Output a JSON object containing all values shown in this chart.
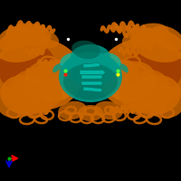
{
  "bg_color": "#000000",
  "figure_size": [
    2.0,
    2.0
  ],
  "dpi": 100,
  "arrow_x_color": "#ff0000",
  "arrow_y_color": "#0000cc",
  "orange_color": "#cc6600",
  "orange_dark": "#993300",
  "orange_light": "#dd7700",
  "teal_color": "#009988",
  "teal_dark": "#006655",
  "teal_light": "#00bbaa",
  "red_dot": "#ff2200",
  "green_dot": "#44ff44",
  "yellow_dot": "#ffff00",
  "white_dot": "#ffffff"
}
